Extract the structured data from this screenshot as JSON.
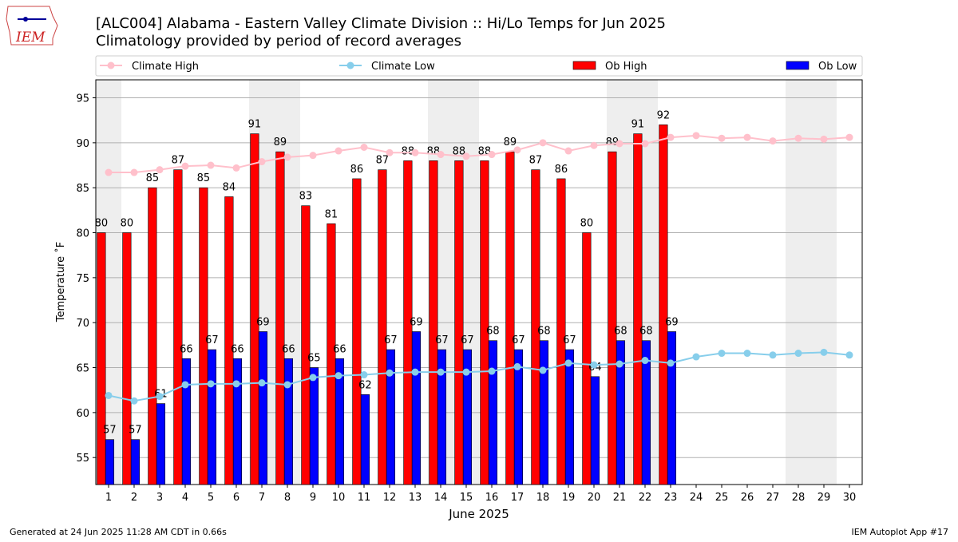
{
  "logo": {
    "text": "IEM"
  },
  "footer": {
    "left": "Generated at 24 Jun 2025 11:28 AM CDT in 0.66s",
    "right": "IEM Autoplot App #17"
  },
  "chart_data": {
    "type": "bar",
    "title": "[ALC004] Alabama - Eastern Valley Climate Division :: Hi/Lo Temps for Jun 2025",
    "subtitle": "Climatology provided by period of record averages",
    "x_label": "June 2025",
    "y_label": "Temperature ˚F",
    "x": [
      1,
      2,
      3,
      4,
      5,
      6,
      7,
      8,
      9,
      10,
      11,
      12,
      13,
      14,
      15,
      16,
      17,
      18,
      19,
      20,
      21,
      22,
      23,
      24,
      25,
      26,
      27,
      28,
      29,
      30
    ],
    "xlim": [
      0.5,
      30.5
    ],
    "xticks": [
      1,
      2,
      3,
      4,
      5,
      6,
      7,
      8,
      9,
      10,
      11,
      12,
      13,
      14,
      15,
      16,
      17,
      18,
      19,
      20,
      21,
      22,
      23,
      24,
      25,
      26,
      27,
      28,
      29,
      30
    ],
    "ylim": [
      52,
      97
    ],
    "yticks": [
      55,
      60,
      65,
      70,
      75,
      80,
      85,
      90,
      95
    ],
    "grid": true,
    "legend": "top",
    "shaded_x": [
      1,
      7,
      8,
      14,
      15,
      21,
      22,
      28,
      29
    ],
    "series": [
      {
        "name": "Climate High",
        "type": "line",
        "color": "#ffc0cb",
        "values": [
          86.7,
          86.7,
          87.0,
          87.4,
          87.5,
          87.2,
          87.9,
          88.4,
          88.6,
          89.1,
          89.5,
          88.9,
          88.9,
          88.7,
          88.5,
          88.7,
          89.2,
          90.0,
          89.1,
          89.7,
          89.9,
          89.9,
          90.6,
          90.8,
          90.5,
          90.6,
          90.2,
          90.5,
          90.4,
          90.6
        ]
      },
      {
        "name": "Climate Low",
        "type": "line",
        "color": "#87ceeb",
        "values": [
          61.9,
          61.3,
          61.8,
          63.1,
          63.2,
          63.2,
          63.3,
          63.1,
          63.9,
          64.1,
          64.2,
          64.4,
          64.5,
          64.5,
          64.5,
          64.6,
          65.1,
          64.7,
          65.5,
          65.3,
          65.4,
          65.8,
          65.5,
          66.2,
          66.6,
          66.6,
          66.4,
          66.6,
          66.7,
          66.4
        ]
      },
      {
        "name": "Ob High",
        "type": "bar",
        "color": "#ff0000",
        "values": [
          80,
          80,
          85,
          87,
          85,
          84,
          91,
          89,
          83,
          81,
          86,
          87,
          88,
          88,
          88,
          88,
          89,
          87,
          86,
          80,
          89,
          91,
          92,
          null,
          null,
          null,
          null,
          null,
          null,
          null
        ]
      },
      {
        "name": "Ob Low",
        "type": "bar",
        "color": "#0000ff",
        "values": [
          57,
          57,
          61,
          66,
          67,
          66,
          69,
          66,
          65,
          66,
          62,
          67,
          69,
          67,
          67,
          68,
          67,
          68,
          67,
          64,
          68,
          68,
          69,
          null,
          null,
          null,
          null,
          null,
          null,
          null
        ]
      }
    ]
  }
}
